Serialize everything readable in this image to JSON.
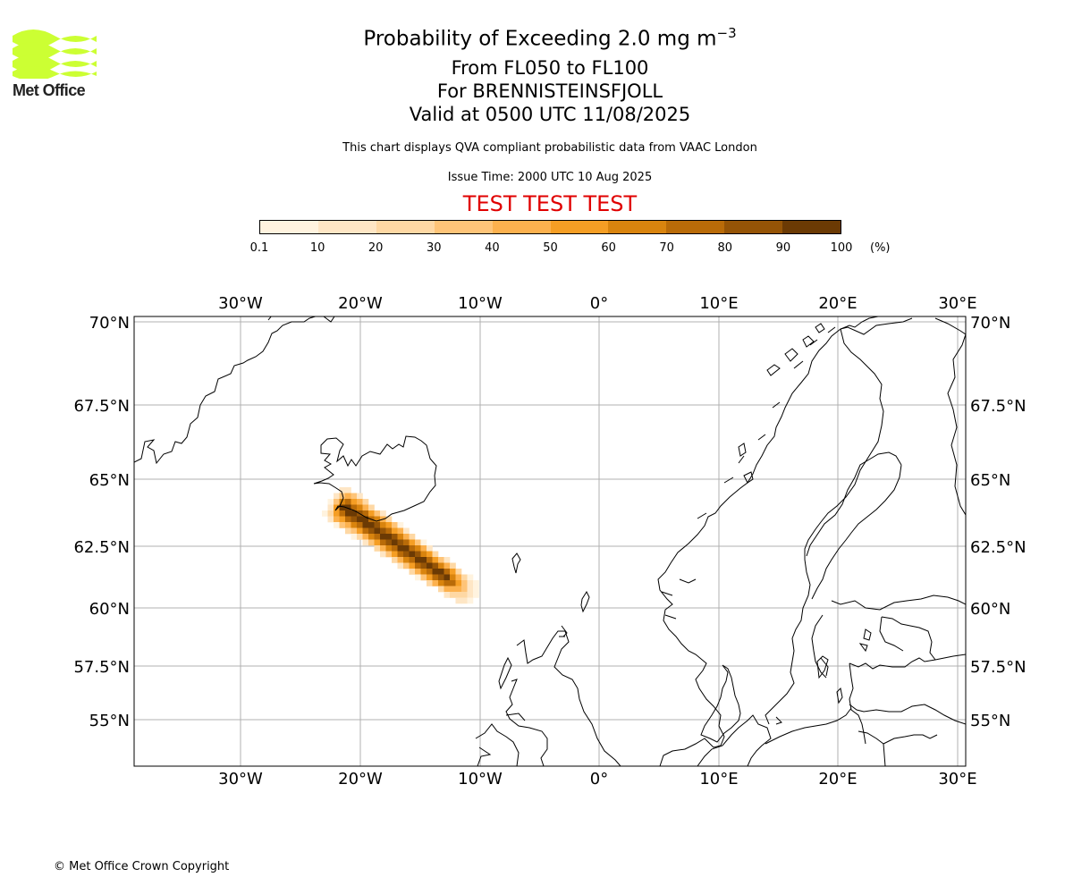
{
  "logo": {
    "text": "Met Office",
    "name": "met-office-logo",
    "wave_color": "#ccff33"
  },
  "header": {
    "title_main": "Probability of Exceeding 2.0 mg m",
    "title_exponent": "−3",
    "line2": "From FL050 to FL100",
    "line3": "For BRENNISTEINSFJOLL",
    "line4": "Valid at 0500 UTC 11/08/2025",
    "note": "This chart displays QVA compliant probabilistic data from VAAC London",
    "issue_time": "Issue Time: 2000 UTC 10 Aug 2025",
    "test_banner": "TEST TEST TEST",
    "test_color": "#e00000"
  },
  "colorbar": {
    "ticks": [
      "0.1",
      "10",
      "20",
      "30",
      "40",
      "50",
      "60",
      "70",
      "80",
      "90",
      "100"
    ],
    "unit": "(%)",
    "colors": [
      "#fff3df",
      "#fee6c5",
      "#fed8a4",
      "#fec478",
      "#fcb14e",
      "#f59e24",
      "#d9840e",
      "#b96b08",
      "#955406",
      "#6b3a04"
    ]
  },
  "map": {
    "lon_labels": [
      "30°W",
      "20°W",
      "10°W",
      "0°",
      "10°E",
      "20°E",
      "30°E"
    ],
    "lat_labels": [
      "70°N",
      "67.5°N",
      "65°N",
      "62.5°N",
      "60°N",
      "57.5°N",
      "55°N"
    ],
    "lon_range": [
      -38.9,
      30.4
    ],
    "lat_range": [
      53.3,
      70.2
    ],
    "gridlines": true,
    "ash_plume": {
      "source": "BRENNISTEINSFJOLL",
      "direction": "southeast",
      "max_probability_percent": 100
    }
  },
  "footer": {
    "copyright": "© Met Office Crown Copyright"
  }
}
